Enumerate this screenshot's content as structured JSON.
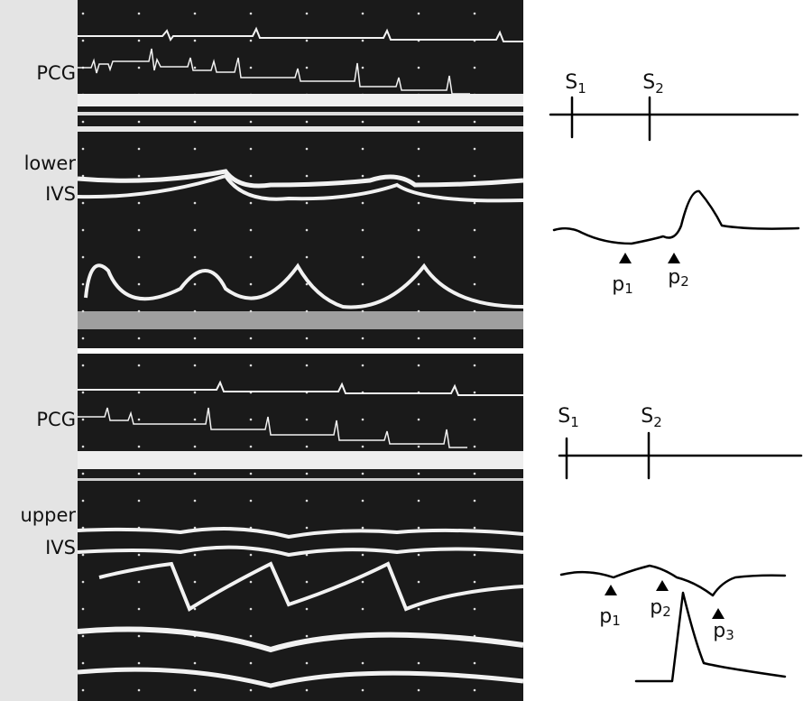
{
  "panels": [
    {
      "labels": [
        "PCG",
        "lower",
        "IVS"
      ],
      "diagram": {
        "sounds": [
          {
            "base": "S",
            "sub": "1"
          },
          {
            "base": "S",
            "sub": "2"
          }
        ],
        "points": [
          {
            "base": "p",
            "sub": "1"
          },
          {
            "base": "p",
            "sub": "2"
          }
        ]
      }
    },
    {
      "labels": [
        "PCG",
        "upper",
        "IVS"
      ],
      "diagram": {
        "sounds": [
          {
            "base": "S",
            "sub": "1"
          },
          {
            "base": "S",
            "sub": "2"
          }
        ],
        "points": [
          {
            "base": "p",
            "sub": "1"
          },
          {
            "base": "p",
            "sub": "2"
          },
          {
            "base": "p",
            "sub": "3"
          }
        ]
      }
    }
  ]
}
